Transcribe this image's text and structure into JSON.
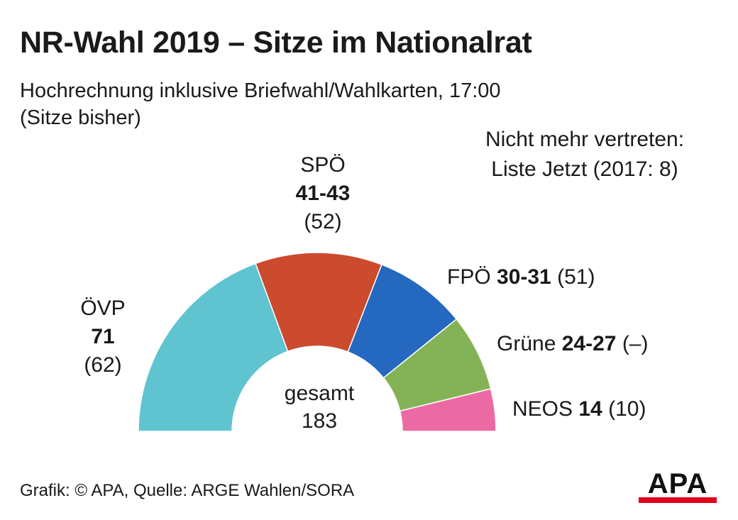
{
  "title": "NR-Wahl 2019 – Sitze im Nationalrat",
  "subtitle_line1": "Hochrechnung inklusive Briefwahl/Wahlkarten, 17:00",
  "subtitle_line2": "(Sitze bisher)",
  "note_line1": "Nicht mehr vertreten:",
  "note_line2": "Liste Jetzt (2017: 8)",
  "center_label": "gesamt",
  "center_total": "183",
  "source": "Grafik: © APA, Quelle: ARGE Wahlen/SORA",
  "logo_text": "APA",
  "colors": {
    "ovp": "#5fc4d0",
    "spo": "#cc4a2d",
    "fpo": "#2468bf",
    "grune": "#84b357",
    "neos": "#ec6aa4",
    "logo_accent": "#e3001b"
  },
  "parties": {
    "ovp": {
      "name": "ÖVP",
      "seats": "71",
      "prev": "(62)"
    },
    "spo": {
      "name": "SPÖ",
      "seats": "41-43",
      "prev": "(52)"
    },
    "fpo": {
      "name": "FPÖ",
      "seats": "30-31",
      "prev": "(51)"
    },
    "grune": {
      "name": "Grüne",
      "seats": "24-27",
      "prev": "(–)"
    },
    "neos": {
      "name": "NEOS",
      "seats": "14",
      "prev": "(10)"
    }
  },
  "chart_data": {
    "type": "pie",
    "subtype": "half-donut (parliament seats)",
    "title": "NR-Wahl 2019 – Sitze im Nationalrat",
    "subtitle": "Hochrechnung inklusive Briefwahl/Wahlkarten, 17:00 (Sitze bisher)",
    "total": 183,
    "categories": [
      "ÖVP",
      "SPÖ",
      "FPÖ",
      "Grüne",
      "NEOS"
    ],
    "values": [
      71,
      42,
      30.5,
      25.5,
      14
    ],
    "value_labels": [
      "71",
      "41-43",
      "30-31",
      "24-27",
      "14"
    ],
    "previous_labels": [
      "(62)",
      "(52)",
      "(51)",
      "(–)",
      "(10)"
    ],
    "colors": [
      "#5fc4d0",
      "#cc4a2d",
      "#2468bf",
      "#84b357",
      "#ec6aa4"
    ]
  }
}
